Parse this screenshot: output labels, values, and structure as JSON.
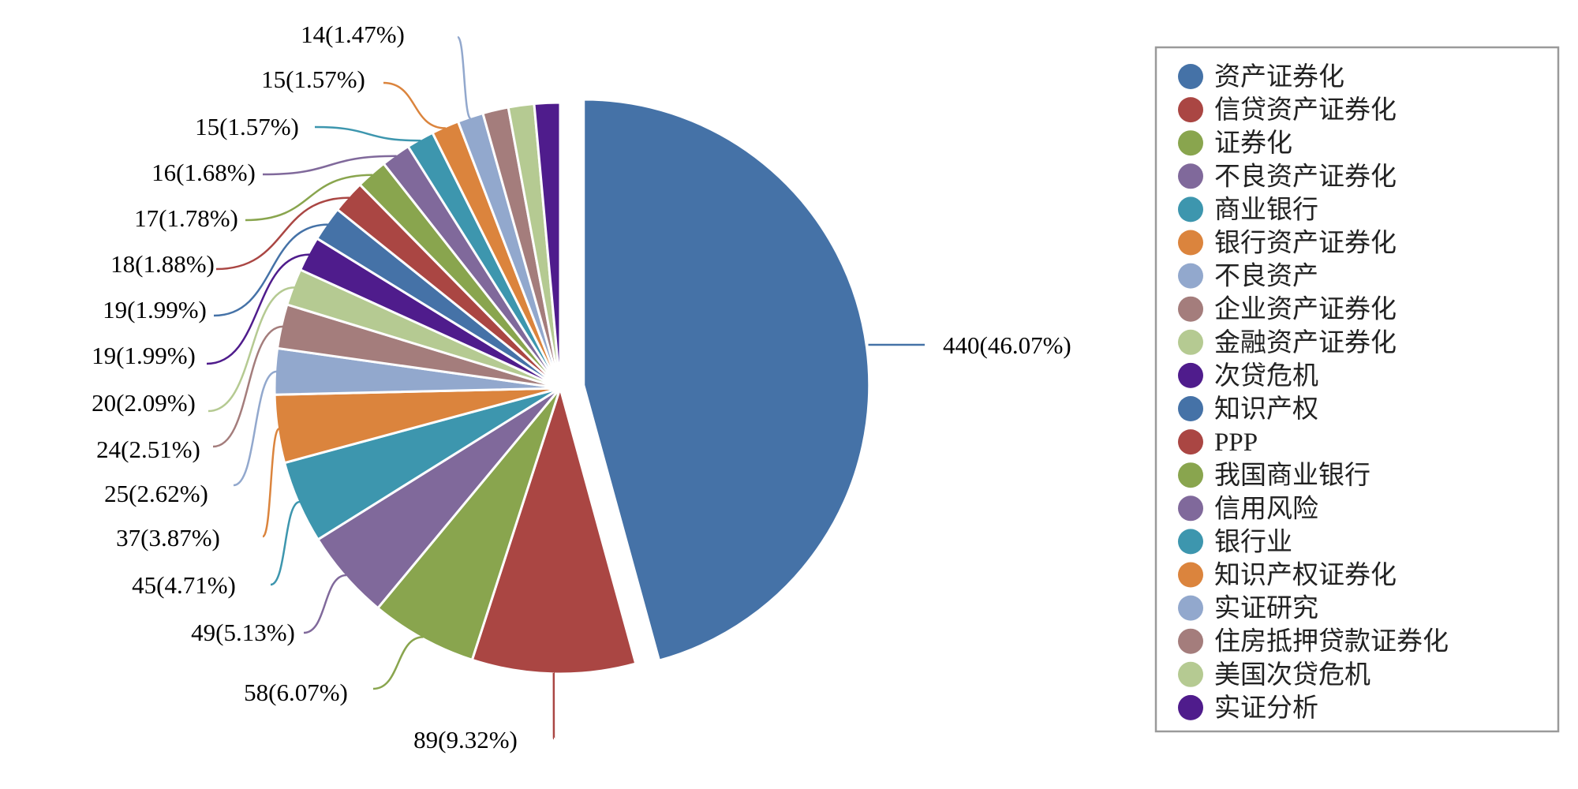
{
  "chart_data": {
    "type": "pie",
    "title": "",
    "exploded_slice_index": 0,
    "legend_position": "right",
    "slices": [
      {
        "label": "资产证券化",
        "value": 440,
        "percent": 46.07,
        "data_label": "440(46.07%)",
        "color": "#4572A7"
      },
      {
        "label": "信贷资产证券化",
        "value": 89,
        "percent": 9.32,
        "data_label": "89(9.32%)",
        "color": "#AA4643"
      },
      {
        "label": "证券化",
        "value": 58,
        "percent": 6.07,
        "data_label": "58(6.07%)",
        "color": "#89A54E"
      },
      {
        "label": "不良资产证券化",
        "value": 49,
        "percent": 5.13,
        "data_label": "49(5.13%)",
        "color": "#80699B"
      },
      {
        "label": "商业银行",
        "value": 45,
        "percent": 4.71,
        "data_label": "45(4.71%)",
        "color": "#3D96AE"
      },
      {
        "label": "银行资产证券化",
        "value": 37,
        "percent": 3.87,
        "data_label": "37(3.87%)",
        "color": "#DB843D"
      },
      {
        "label": "不良资产",
        "value": 25,
        "percent": 2.62,
        "data_label": "25(2.62%)",
        "color": "#92A8CD"
      },
      {
        "label": "企业资产证券化",
        "value": 24,
        "percent": 2.51,
        "data_label": "24(2.51%)",
        "color": "#A47D7C"
      },
      {
        "label": "金融资产证券化",
        "value": 20,
        "percent": 2.09,
        "data_label": "20(2.09%)",
        "color": "#B5CA92"
      },
      {
        "label": "次贷危机",
        "value": 19,
        "percent": 1.99,
        "data_label": "19(1.99%)",
        "color": "#4F1C8C"
      },
      {
        "label": "知识产权",
        "value": 19,
        "percent": 1.99,
        "data_label": "19(1.99%)",
        "color": "#4572A7"
      },
      {
        "label": "PPP",
        "value": 18,
        "percent": 1.88,
        "data_label": "18(1.88%)",
        "color": "#AA4643"
      },
      {
        "label": "我国商业银行",
        "value": 17,
        "percent": 1.78,
        "data_label": "17(1.78%)",
        "color": "#89A54E"
      },
      {
        "label": "信用风险",
        "value": 16,
        "percent": 1.68,
        "data_label": "16(1.68%)",
        "color": "#80699B"
      },
      {
        "label": "银行业",
        "value": 15,
        "percent": 1.57,
        "data_label": "15(1.57%)",
        "color": "#3D96AE"
      },
      {
        "label": "知识产权证券化",
        "value": 15,
        "percent": 1.57,
        "data_label": "15(1.57%)",
        "color": "#DB843D"
      },
      {
        "label": "实证研究",
        "value": 14,
        "percent": 1.47,
        "data_label": "14(1.47%)",
        "color": "#92A8CD"
      },
      {
        "label": "住房抵押贷款证券化",
        "value": 14,
        "percent": 1.47,
        "data_label": "",
        "color": "#A47D7C"
      },
      {
        "label": "美国次贷危机",
        "value": 14,
        "percent": 1.47,
        "data_label": "",
        "color": "#B5CA92"
      },
      {
        "label": "实证分析",
        "value": 14,
        "percent": 1.47,
        "data_label": "",
        "color": "#4F1C8C"
      }
    ]
  }
}
